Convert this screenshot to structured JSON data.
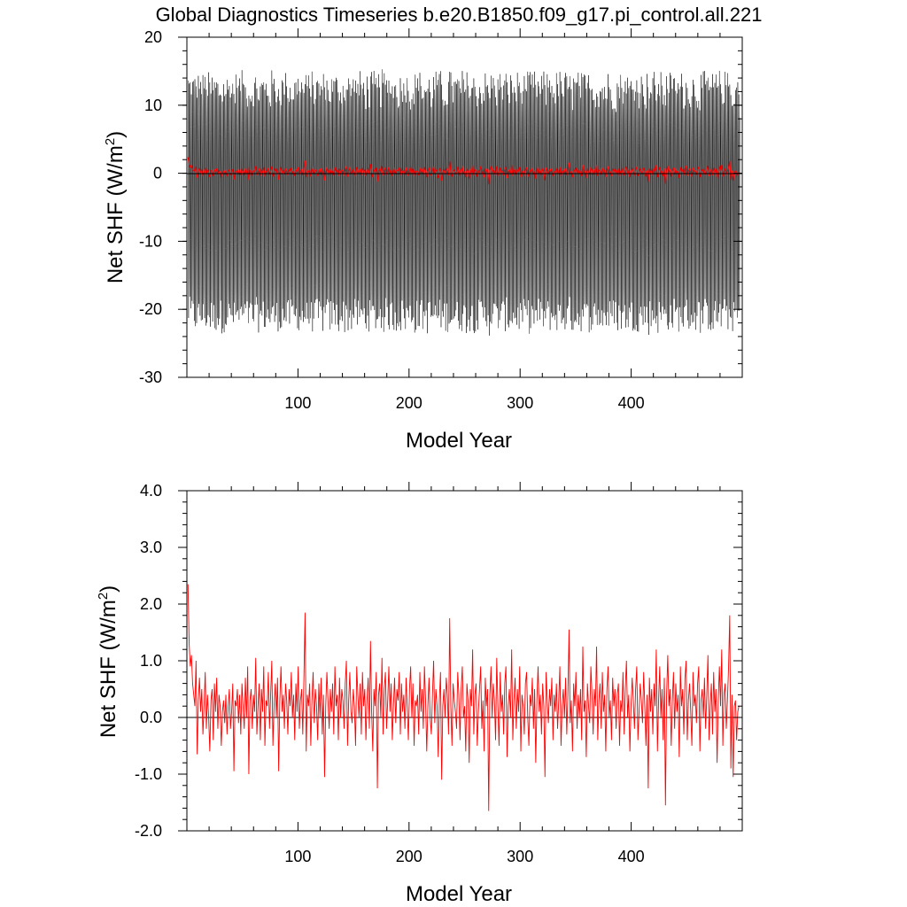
{
  "title": "Global Diagnostics Timeseries b.e20.B1850.f09_g17.pi_control.all.221",
  "chart_data": [
    {
      "type": "line",
      "panel": "top",
      "xlabel": "Model Year",
      "ylabel_main": "Net SHF (W/m",
      "ylabel_sup": "2",
      "ylabel_close": ")",
      "xlim": [
        0,
        500
      ],
      "ylim": [
        -30,
        20
      ],
      "xticks": [
        100,
        200,
        300,
        400
      ],
      "xtick_labels": [
        "100",
        "200",
        "300",
        "400"
      ],
      "yticks": [
        -30,
        -20,
        -10,
        0,
        10,
        20
      ],
      "ytick_labels": [
        "-30",
        "-20",
        "-10",
        "0",
        "10",
        "20"
      ],
      "reference_line_y": 0,
      "series": [
        {
          "color": "#000000",
          "kind": "monthly",
          "description_values": {
            "seasonal_max": 12,
            "seasonal_min": -21,
            "max": 17,
            "min": -25
          }
        },
        {
          "color": "#ff0000",
          "kind": "annual_mean"
        }
      ]
    },
    {
      "type": "line",
      "panel": "bottom",
      "xlabel": "Model Year",
      "ylabel_main": "Net SHF (W/m",
      "ylabel_sup": "2",
      "ylabel_close": ")",
      "xlim": [
        0,
        500
      ],
      "ylim": [
        -2.0,
        4.0
      ],
      "xticks": [
        100,
        200,
        300,
        400
      ],
      "xtick_labels": [
        "100",
        "200",
        "300",
        "400"
      ],
      "yticks": [
        -2,
        -1,
        0,
        1,
        2,
        3,
        4
      ],
      "ytick_labels": [
        "-2.0",
        "-1.0",
        "0.0",
        "1.0",
        "2.0",
        "3.0",
        "4.0"
      ],
      "reference_line_y": 0,
      "series": [
        {
          "color": "#ff0000",
          "kind": "annual_mean",
          "x_start": 1,
          "x_end": 497,
          "values": [
            2.35,
            1.3,
            0.9,
            1.1,
            0.6,
            0.4,
            0.2,
            1.0,
            -0.65,
            0.3,
            0.7,
            0.1,
            0.5,
            -0.3,
            0.2,
            0.8,
            -0.2,
            0.4,
            0.0,
            -0.6,
            0.3,
            0.5,
            -0.4,
            0.6,
            0.1,
            0.7,
            -0.2,
            0.4,
            0.2,
            -0.5,
            0.1,
            0.3,
            -0.1,
            0.4,
            -0.3,
            0.2,
            0.5,
            -0.2,
            0.1,
            0.6,
            -0.95,
            0.3,
            0.2,
            0.5,
            -0.1,
            0.4,
            -0.3,
            0.6,
            0.2,
            -0.2,
            0.7,
            0.0,
            0.9,
            -1.0,
            0.3,
            0.5,
            -0.2,
            0.4,
            0.1,
            1.05,
            -0.3,
            0.2,
            0.6,
            -0.4,
            0.5,
            0.1,
            0.9,
            -0.5,
            0.3,
            0.2,
            0.8,
            -0.2,
            0.4,
            1.0,
            -0.5,
            0.2,
            0.6,
            0.0,
            0.7,
            -0.95,
            0.3,
            0.9,
            0.1,
            0.4,
            -0.2,
            0.6,
            0.3,
            -0.3,
            0.5,
            0.2,
            0.8,
            0.0,
            0.4,
            -0.4,
            0.6,
            0.1,
            0.9,
            -0.2,
            0.3,
            0.5,
            -0.3,
            0.7,
            1.85,
            -0.6,
            0.4,
            0.2,
            0.6,
            -0.5,
            0.3,
            0.8,
            -0.1,
            0.5,
            0.2,
            -0.4,
            0.6,
            0.0,
            0.7,
            -0.3,
            0.4,
            -1.05,
            0.2,
            0.8,
            0.3,
            -0.2,
            0.5,
            0.1,
            0.6,
            -0.3,
            0.9,
            0.2,
            0.4,
            -0.4,
            0.7,
            0.0,
            0.5,
            0.3,
            -0.2,
            0.6,
            1.0,
            -0.5,
            0.3,
            0.8,
            0.1,
            -0.1,
            0.5,
            0.2,
            -0.5,
            0.9,
            0.4,
            0.0,
            0.6,
            -0.3,
            0.8,
            0.2,
            0.5,
            -0.4,
            0.3,
            0.7,
            -0.2,
            1.35,
            0.1,
            -0.6,
            0.5,
            0.2,
            0.8,
            -1.25,
            0.4,
            0.6,
            0.0,
            1.05,
            -0.3,
            0.5,
            0.8,
            -0.2,
            0.3,
            0.9,
            0.1,
            0.6,
            -0.4,
            0.2,
            0.7,
            -0.1,
            0.5,
            0.3,
            0.8,
            -0.3,
            0.6,
            0.1,
            0.4,
            -0.2,
            0.7,
            0.2,
            -0.4,
            0.5,
            0.9,
            0.0,
            0.6,
            -0.5,
            0.3,
            0.2,
            0.4,
            -0.3,
            0.8,
            0.1,
            0.5,
            -0.2,
            0.9,
            0.3,
            -0.6,
            0.2,
            0.7,
            0.0,
            -0.3,
            0.4,
            1.0,
            -0.1,
            0.5,
            0.2,
            -0.7,
            0.3,
            0.8,
            -1.1,
            0.2,
            0.5,
            0.0,
            0.7,
            0.4,
            -0.3,
            1.75,
            0.2,
            -0.5,
            0.6,
            0.3,
            0.1,
            -0.2,
            0.8,
            0.4,
            -0.4,
            0.5,
            0.9,
            0.0,
            0.2,
            -0.6,
            0.6,
            0.3,
            -0.8,
            0.5,
            0.2,
            1.2,
            -0.3,
            0.4,
            0.6,
            -0.5,
            0.1,
            0.5,
            0.9,
            -0.2,
            0.3,
            -0.6,
            0.7,
            0.2,
            0.5,
            -1.65,
            0.4,
            0.9,
            0.0,
            0.6,
            0.3,
            -0.4,
            1.05,
            0.2,
            -0.5,
            0.8,
            0.1,
            0.4,
            -0.3,
            0.6,
            0.9,
            -0.7,
            0.2,
            0.5,
            0.0,
            1.2,
            -0.4,
            0.3,
            0.7,
            -0.2,
            0.5,
            0.1,
            0.9,
            -0.6,
            0.4,
            0.2,
            -0.3,
            0.6,
            0.8,
            0.0,
            -0.5,
            0.4,
            0.2,
            0.7,
            -0.2,
            0.5,
            -0.8,
            0.3,
            0.9,
            0.1,
            0.4,
            -0.3,
            0.6,
            0.2,
            -1.05,
            0.8,
            0.3,
            -0.1,
            0.5,
            0.2,
            0.7,
            -0.4,
            0.4,
            0.1,
            0.6,
            -0.2,
            0.3,
            0.9,
            -0.5,
            0.2,
            0.5,
            0.0,
            0.7,
            -0.3,
            0.4,
            1.55,
            -0.1,
            0.3,
            -0.6,
            0.6,
            0.2,
            0.8,
            -0.2,
            0.4,
            0.0,
            0.5,
            -0.4,
            1.25,
            0.1,
            0.3,
            -0.7,
            0.6,
            0.2,
            -0.1,
            0.9,
            0.4,
            -0.3,
            0.5,
            0.2,
            1.25,
            -0.4,
            0.3,
            0.6,
            -0.2,
            0.8,
            0.1,
            0.4,
            -0.6,
            0.5,
            0.9,
            0.0,
            0.3,
            -0.4,
            0.7,
            0.2,
            0.5,
            -0.2,
            0.4,
            0.6,
            -0.5,
            0.3,
            0.1,
            0.8,
            -0.3,
            0.5,
            1.0,
            0.0,
            0.4,
            -0.6,
            0.2,
            0.7,
            0.3,
            -0.2,
            0.5,
            0.9,
            -0.4,
            0.1,
            0.6,
            0.3,
            -0.1,
            0.8,
            0.2,
            -0.5,
            0.4,
            -1.25,
            0.7,
            0.1,
            0.5,
            -0.3,
            0.6,
            0.2,
            1.2,
            -0.6,
            0.3,
            0.9,
            0.0,
            0.5,
            -0.4,
            0.7,
            -1.55,
            0.4,
            1.1,
            0.2,
            0.5,
            -0.5,
            0.3,
            0.8,
            -0.2,
            0.6,
            0.1,
            0.4,
            -0.7,
            0.9,
            0.2,
            0.5,
            -0.3,
            0.7,
            1.0,
            -0.4,
            0.3,
            0.6,
            0.1,
            -0.5,
            0.8,
            0.2,
            0.4,
            -0.1,
            0.6,
            0.9,
            -0.6,
            0.3,
            0.5,
            0.0,
            0.7,
            -0.2,
            0.4,
            1.1,
            -0.4,
            0.2,
            0.6,
            -0.3,
            0.8,
            0.1,
            0.5,
            -0.8,
            0.3,
            0.9,
            0.2,
            1.2,
            -0.5,
            0.4,
            0.6,
            -0.2,
            0.3,
            0.9,
            1.8,
            -0.9,
            0.4,
            -1.05,
            0.2,
            0.3,
            -0.4,
            0.1,
            0.2
          ]
        }
      ]
    }
  ]
}
